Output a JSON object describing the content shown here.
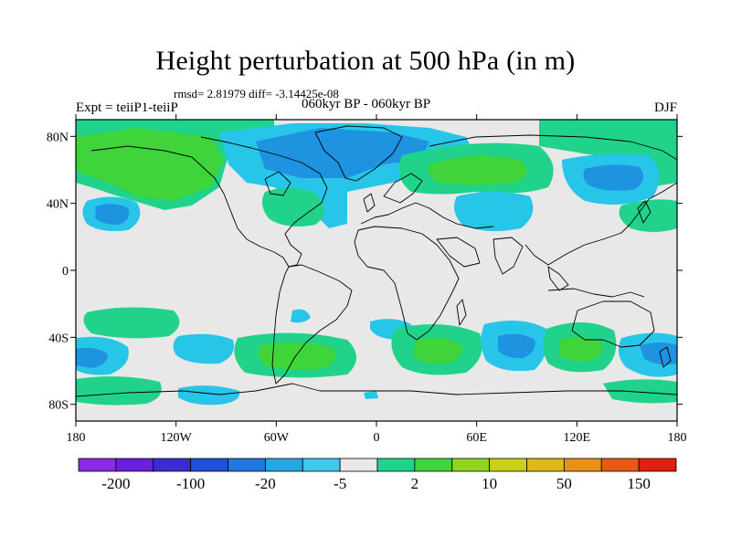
{
  "header": {
    "title": "Height perturbation at 500 hPa (in m)",
    "stats": "rmsd= 2.81979 diff= -3.14425e-08",
    "experiment": "Expt = teiiP1-teiiP",
    "period": "060kyr BP - 060kyr BP",
    "season": "DJF"
  },
  "axes": {
    "lat_labels": [
      "80N",
      "40N",
      "0",
      "40S",
      "80S"
    ],
    "lat_values": [
      80,
      40,
      0,
      -40,
      -80
    ],
    "lon_labels": [
      "180",
      "120W",
      "60W",
      "0",
      "60E",
      "120E",
      "180"
    ],
    "lon_values": [
      -180,
      -120,
      -60,
      0,
      60,
      120,
      180
    ]
  },
  "colorbar": {
    "colors": [
      "#8a2be2",
      "#6a1fd8",
      "#3b2ccf",
      "#1f50d8",
      "#1e78e0",
      "#27a6e6",
      "#3fc8ec",
      "#e8e8e8",
      "#21d28a",
      "#3fd43a",
      "#8fd420",
      "#c8d01a",
      "#dcb81c",
      "#e89018",
      "#e85a14",
      "#e02010"
    ],
    "labels": [
      "-200",
      "-100",
      "-20",
      "-5",
      "2",
      "10",
      "50",
      "150"
    ]
  },
  "map_colors": {
    "ocean_neutral": "#e8e8e8",
    "blue_light": "#27c6e8",
    "blue_mid": "#1e93e0",
    "green_light": "#21d28a",
    "green_mid": "#3fd43a"
  }
}
